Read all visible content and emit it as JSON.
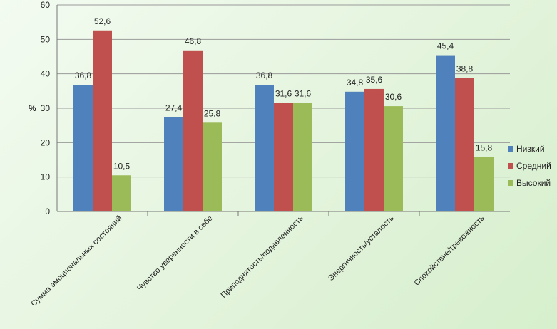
{
  "chart_data": {
    "type": "bar",
    "ylabel": "%",
    "ylim": [
      0,
      60
    ],
    "yticks": [
      0,
      10,
      20,
      30,
      40,
      50,
      60
    ],
    "grid": true,
    "legend_position": "right",
    "categories": [
      "Сумма эмоциональных состояний",
      "Чувство уверенности в себе",
      "Приподнятость/подавленность",
      "Энергичность/усталость",
      "Спокойствие/тревожность"
    ],
    "series": [
      {
        "name": "Низкий",
        "color": "#4f81bd",
        "values": [
          36.8,
          27.4,
          36.8,
          34.8,
          45.4
        ],
        "labels": [
          "36,8",
          "27,4",
          "36,8",
          "34,8",
          "45,4"
        ]
      },
      {
        "name": "Средний",
        "color": "#c0504d",
        "values": [
          52.6,
          46.8,
          31.6,
          35.6,
          38.8
        ],
        "labels": [
          "52,6",
          "46,8",
          "31,6",
          "35,6",
          "38,8"
        ]
      },
      {
        "name": "Высокий",
        "color": "#9bbb59",
        "values": [
          10.5,
          25.8,
          31.6,
          30.6,
          15.8
        ],
        "labels": [
          "10,5",
          "25,8",
          "31,6",
          "30,6",
          "15,8"
        ]
      }
    ]
  }
}
